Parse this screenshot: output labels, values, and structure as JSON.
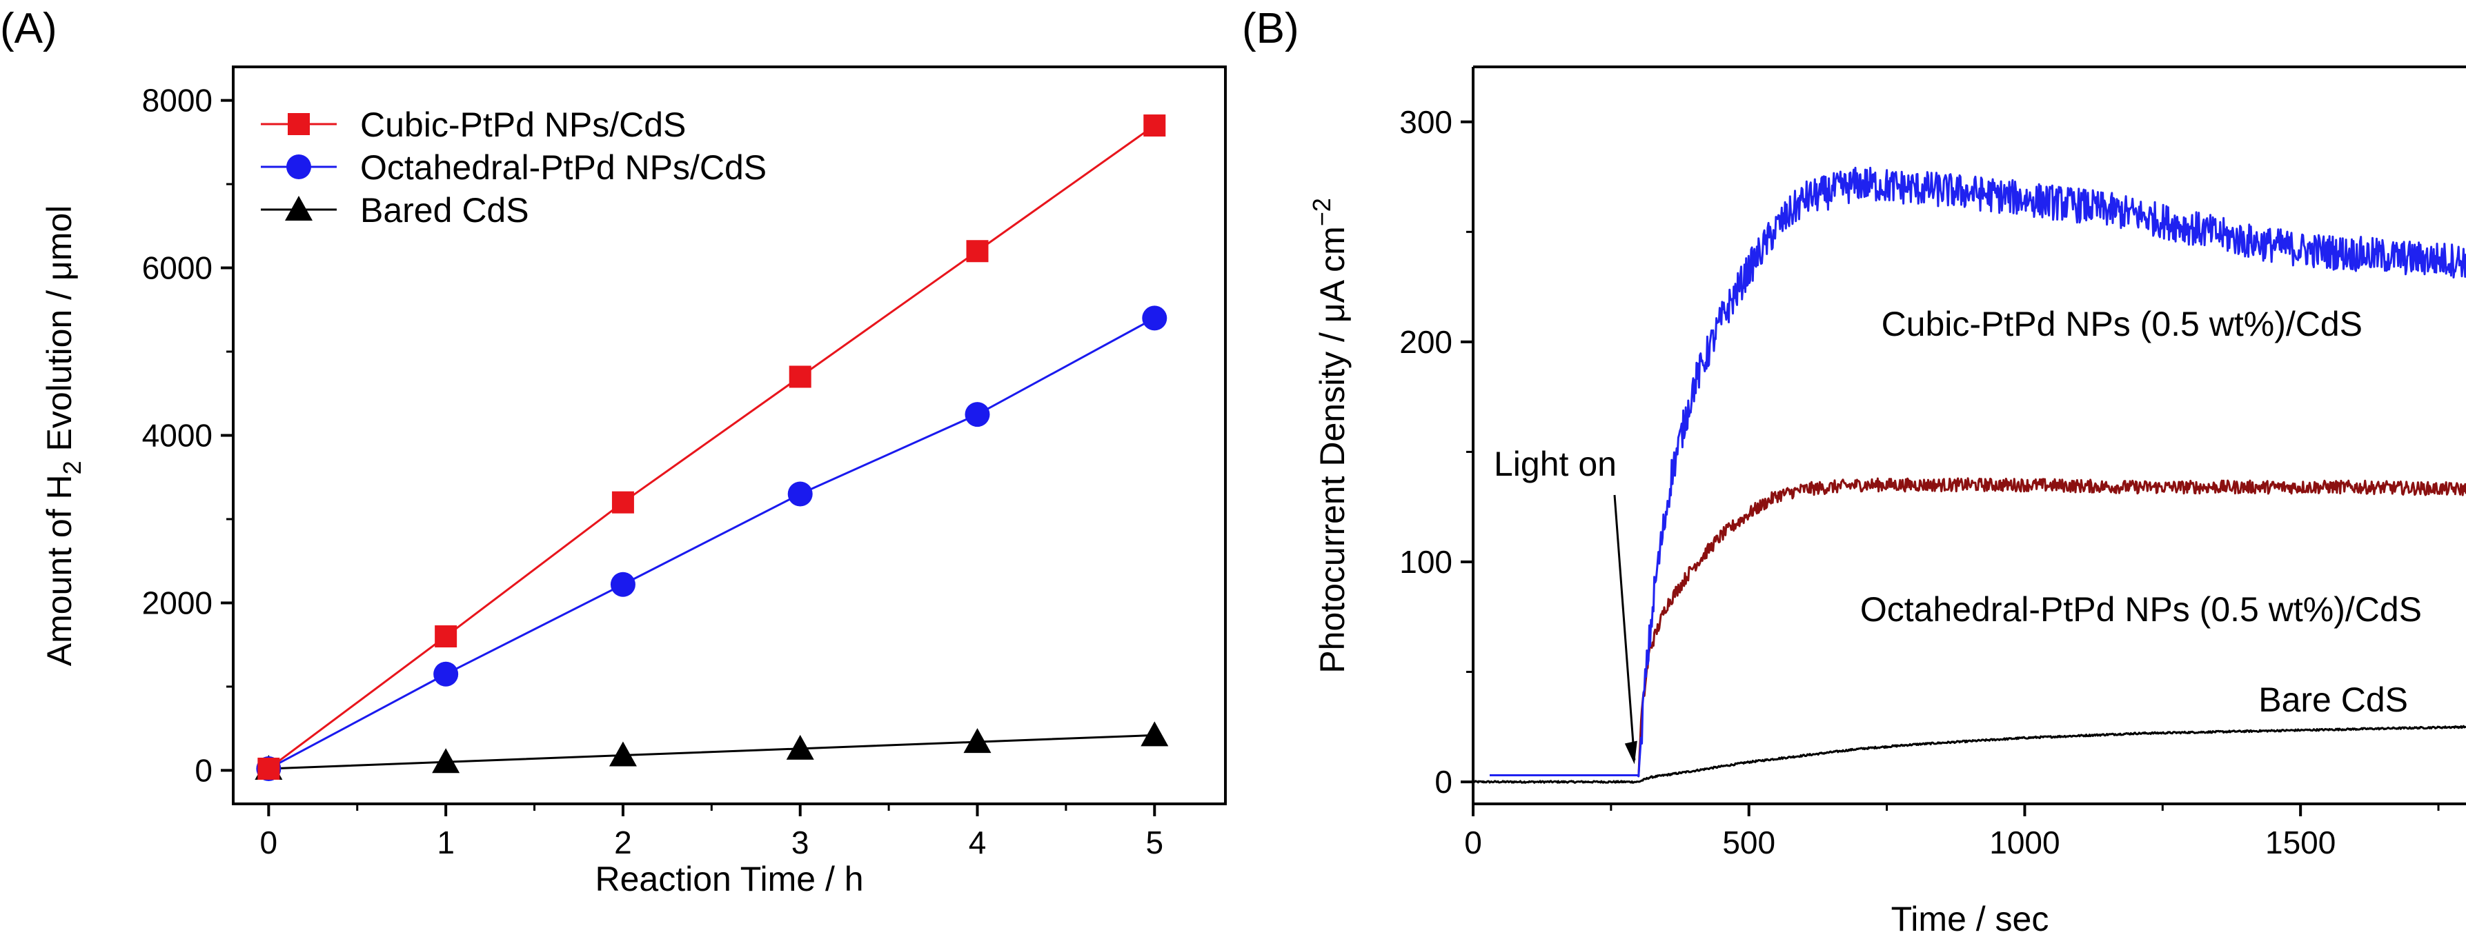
{
  "chart_data": [
    {
      "panel": "(A)",
      "type": "line",
      "xlabel": "Reaction Time / h",
      "ylabel_main": "Amount of H",
      "ylabel_sub": "2",
      "ylabel_rest": " Evolution / μmol",
      "xlim": [
        -0.2,
        5.4
      ],
      "ylim": [
        -400,
        8400
      ],
      "xticks": [
        0,
        1,
        2,
        3,
        4,
        5
      ],
      "xtick_labels": [
        "0",
        "1",
        "2",
        "3",
        "4",
        "5"
      ],
      "yticks": [
        0,
        2000,
        4000,
        6000,
        8000
      ],
      "ytick_labels": [
        "0",
        "2000",
        "4000",
        "6000",
        "8000"
      ],
      "legend_position": "top-left",
      "x": [
        0,
        1,
        2,
        3,
        4,
        5
      ],
      "series": [
        {
          "name": "Cubic-PtPd NPs/CdS",
          "marker": "square",
          "color": "#e8151c",
          "values": [
            20,
            1600,
            3200,
            4700,
            6200,
            7700
          ]
        },
        {
          "name": "Octahedral-PtPd NPs/CdS",
          "marker": "circle",
          "color": "#1a1aee",
          "values": [
            20,
            1150,
            2220,
            3300,
            4250,
            5400
          ]
        },
        {
          "name": "Bared CdS",
          "marker": "triangle",
          "color": "#000000",
          "values": [
            20,
            100,
            180,
            260,
            340,
            420
          ]
        }
      ]
    },
    {
      "panel": "(B)",
      "type": "line",
      "xlabel": "Time / sec",
      "ylabel": "Photocurrent Density / μA cm",
      "ylabel_sup": "−2",
      "xlim": [
        0,
        1800
      ],
      "ylim": [
        -10,
        325
      ],
      "xticks": [
        0,
        500,
        1000,
        1500
      ],
      "xtick_labels": [
        "0",
        "500",
        "1000",
        "1500"
      ],
      "yticks": [
        0,
        100,
        200,
        300
      ],
      "ytick_labels": [
        "0",
        "100",
        "200",
        "300"
      ],
      "light_on_time": 300,
      "annotations": {
        "light_on": "Light on"
      },
      "series": [
        {
          "name": "Cubic-PtPd NPs (0.5 wt%)/CdS",
          "color": "#1f22f0",
          "t_start": 30,
          "baseline": 3,
          "envelope": [
            [
              300,
              3
            ],
            [
              310,
              40
            ],
            [
              330,
              90
            ],
            [
              360,
              140
            ],
            [
              400,
              180
            ],
            [
              450,
              210
            ],
            [
              500,
              233
            ],
            [
              550,
              252
            ],
            [
              600,
              265
            ],
            [
              700,
              272
            ],
            [
              800,
              270
            ],
            [
              900,
              268
            ],
            [
              1000,
              265
            ],
            [
              1100,
              262
            ],
            [
              1200,
              258
            ],
            [
              1300,
              252
            ],
            [
              1400,
              246
            ],
            [
              1500,
              242
            ],
            [
              1600,
              240
            ],
            [
              1700,
              238
            ],
            [
              1800,
              237
            ]
          ],
          "noise": 8
        },
        {
          "name": "Octahedral-PtPd NPs (0.5 wt%)/CdS",
          "color": "#8b1010",
          "t_start": 300,
          "baseline": 3,
          "envelope": [
            [
              300,
              3
            ],
            [
              305,
              30
            ],
            [
              320,
              60
            ],
            [
              350,
              80
            ],
            [
              400,
              98
            ],
            [
              450,
              112
            ],
            [
              500,
              122
            ],
            [
              550,
              130
            ],
            [
              600,
              133
            ],
            [
              700,
              135
            ],
            [
              800,
              135
            ],
            [
              1000,
              135
            ],
            [
              1200,
              134
            ],
            [
              1400,
              134
            ],
            [
              1600,
              134
            ],
            [
              1800,
              133
            ]
          ],
          "noise": 3
        },
        {
          "name": "Bare CdS",
          "color": "#000000",
          "t_start": 0,
          "baseline": 0,
          "envelope": [
            [
              0,
              0
            ],
            [
              300,
              0
            ],
            [
              320,
              2
            ],
            [
              400,
              5
            ],
            [
              500,
              9
            ],
            [
              600,
              12
            ],
            [
              700,
              15
            ],
            [
              800,
              17
            ],
            [
              1000,
              20
            ],
            [
              1200,
              22
            ],
            [
              1400,
              23
            ],
            [
              1600,
              24
            ],
            [
              1800,
              25
            ]
          ],
          "noise": 0.4
        }
      ]
    }
  ]
}
